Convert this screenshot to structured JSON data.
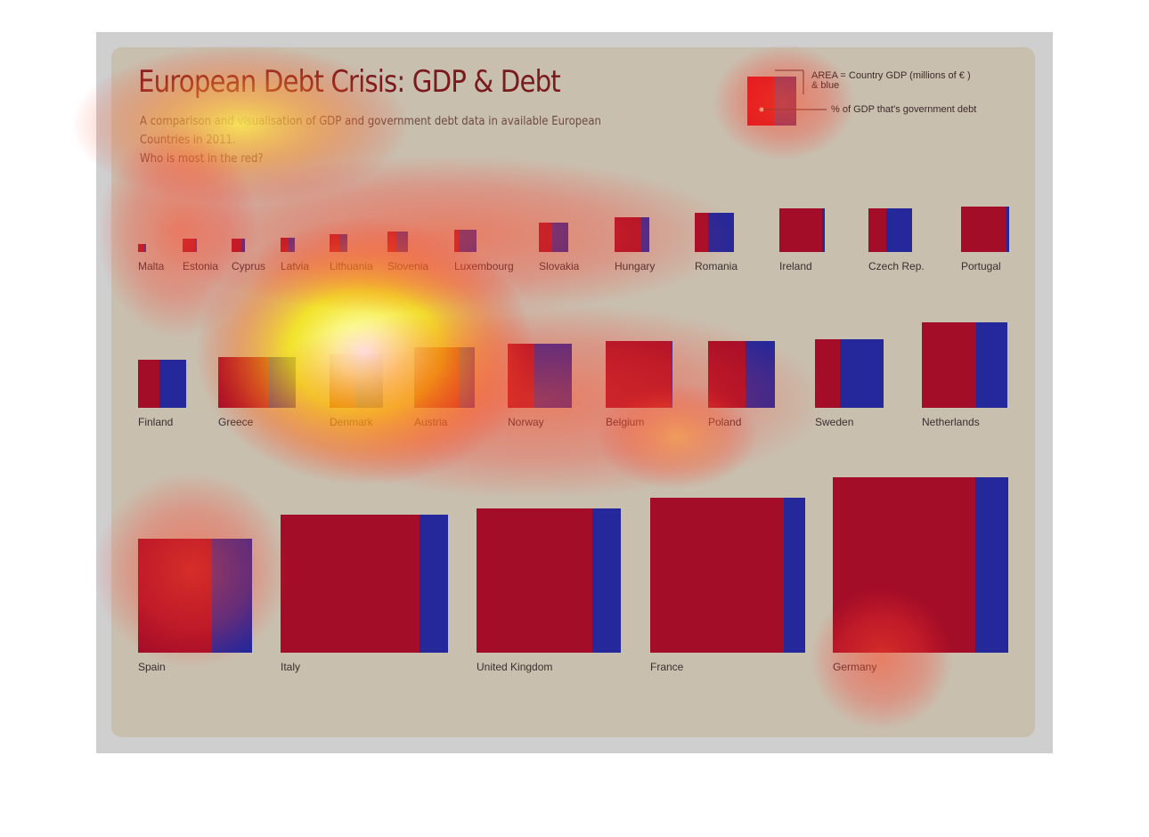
{
  "title": "European Debt Crisis: GDP & Debt",
  "subtitle_line1": "A comparison and visualisation of GDP and government debt data in available European Countries in 2011.",
  "subtitle_line2": "Who is most in the red?",
  "legend": {
    "area_text_1": "AREA = Country GDP (millions of  € )",
    "area_text_2": "& blue",
    "debt_text": "% of GDP that's government debt"
  },
  "colors": {
    "gdp_red": "#a30d28",
    "debt_blue": "#25289a",
    "panel": "#c9bfae",
    "title": "#7a1a1c"
  },
  "chart_data": {
    "type": "treemap-squares",
    "rows": [
      [
        {
          "name": "Malta",
          "size": 9,
          "debt_share": 0.3
        },
        {
          "name": "Estonia",
          "size": 15,
          "debt_share": 0.1
        },
        {
          "name": "Cyprus",
          "size": 15,
          "debt_share": 0.3
        },
        {
          "name": "Latvia",
          "size": 16,
          "debt_share": 0.45
        },
        {
          "name": "Lithuania",
          "size": 20,
          "debt_share": 0.45
        },
        {
          "name": "Slovenia",
          "size": 24,
          "debt_share": 0.55
        },
        {
          "name": "Luxembourg",
          "size": 25,
          "debt_share": 0.82
        },
        {
          "name": "Slovakia",
          "size": 33,
          "debt_share": 0.55
        },
        {
          "name": "Hungary",
          "size": 39,
          "debt_share": 0.22
        },
        {
          "name": "Romania",
          "size": 44,
          "debt_share": 0.65
        },
        {
          "name": "Ireland",
          "size": 50,
          "debt_share": 0.05
        },
        {
          "name": "Czech Rep.",
          "size": 49,
          "debt_share": 0.6
        },
        {
          "name": "Portugal",
          "size": 53,
          "debt_share": 0.05
        }
      ],
      [
        {
          "name": "Finland",
          "size": 54,
          "debt_share": 0.56
        },
        {
          "name": "Greece",
          "size": 57,
          "debt_share": 0.35
        },
        {
          "name": "Denmark",
          "size": 60,
          "debt_share": 0.5
        },
        {
          "name": "Austria",
          "size": 68,
          "debt_share": 0.27
        },
        {
          "name": "Norway",
          "size": 72,
          "debt_share": 0.58
        },
        {
          "name": "Belgium",
          "size": 75,
          "debt_share": 0.01
        },
        {
          "name": "Poland",
          "size": 75,
          "debt_share": 0.44
        },
        {
          "name": "Sweden",
          "size": 77,
          "debt_share": 0.63
        },
        {
          "name": "Netherlands",
          "size": 96,
          "debt_share": 0.36
        }
      ],
      [
        {
          "name": "Spain",
          "size": 128,
          "debt_share": 0.35
        },
        {
          "name": "Italy",
          "size": 155,
          "debt_share": 0.17
        },
        {
          "name": "United Kingdom",
          "size": 162,
          "debt_share": 0.2
        },
        {
          "name": "France",
          "size": 174,
          "debt_share": 0.14
        },
        {
          "name": "Germany",
          "size": 197,
          "debt_share": 0.19
        }
      ]
    ]
  }
}
